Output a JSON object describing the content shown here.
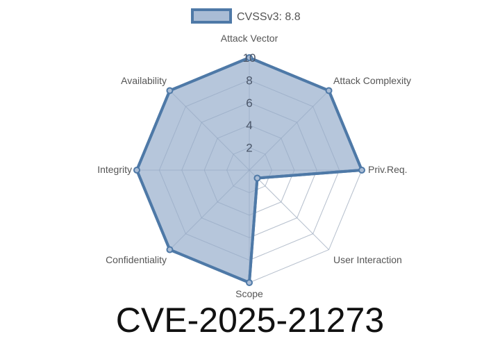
{
  "chart_data": {
    "type": "radar",
    "axes": [
      "Attack Vector",
      "Attack Complexity",
      "Priv.Req.",
      "User Interaction",
      "Scope",
      "Confidentiality",
      "Integrity",
      "Availability"
    ],
    "series": [
      {
        "name": "CVSSv3: 8.8",
        "values": [
          10,
          10,
          10,
          1,
          10,
          10,
          10,
          10
        ]
      }
    ],
    "rlim": [
      0,
      10
    ],
    "ticks": [
      "2",
      "4",
      "6",
      "8",
      "10"
    ],
    "tick_values": [
      2,
      4,
      6,
      8,
      10
    ],
    "grid": true,
    "legend_placement": "top",
    "colors": {
      "line": "#4e79a7",
      "fill": "#a9bcd5",
      "grid": "#dddddd"
    }
  },
  "title": "CVE-2025-21273"
}
